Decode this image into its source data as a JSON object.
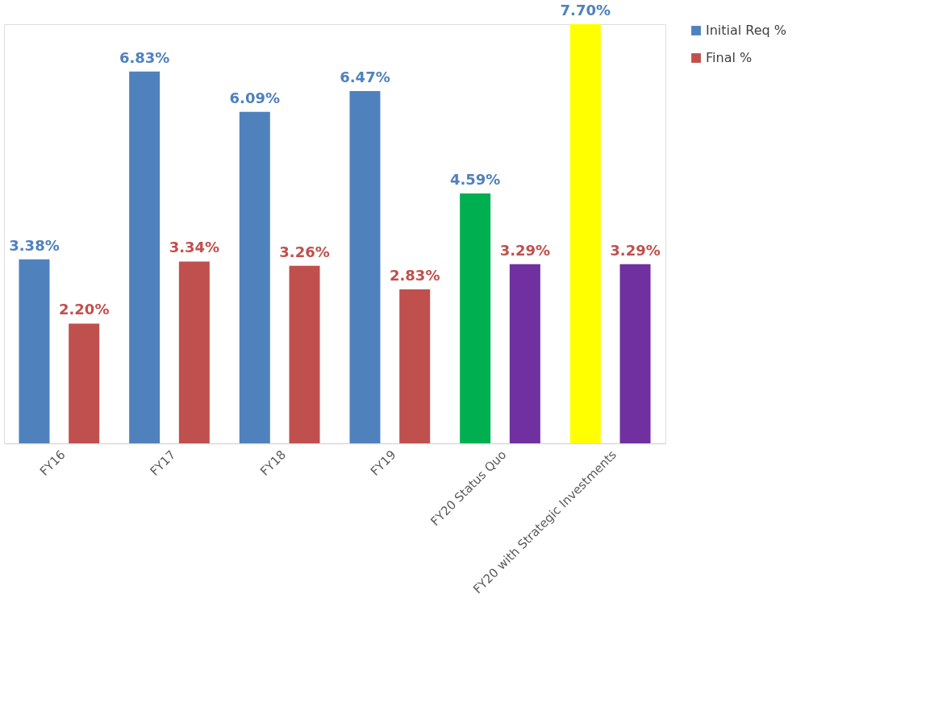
{
  "chart_data": {
    "type": "bar",
    "categories": [
      "FY16",
      "FY17",
      "FY18",
      "FY19",
      "FY20 Status Quo",
      "FY20 with Strategic Investments"
    ],
    "series": [
      {
        "name": "Initial Req %",
        "color": "#4f81bd",
        "colors": [
          "#4f81bd",
          "#4f81bd",
          "#4f81bd",
          "#4f81bd",
          "#00b050",
          "#ffff00"
        ],
        "values": [
          3.38,
          6.83,
          6.09,
          6.47,
          4.59,
          7.7
        ],
        "value_labels": [
          "3.38%",
          "6.83%",
          "6.09%",
          "6.47%",
          "4.59%",
          "7.70%"
        ]
      },
      {
        "name": "Final %",
        "color": "#c0504d",
        "colors": [
          "#c0504d",
          "#c0504d",
          "#c0504d",
          "#c0504d",
          "#7030a0",
          "#7030a0"
        ],
        "values": [
          2.2,
          3.34,
          3.26,
          2.83,
          3.29,
          3.29
        ],
        "value_labels": [
          "2.20%",
          "3.34%",
          "3.26%",
          "2.83%",
          "3.29%",
          "3.29%"
        ]
      }
    ],
    "legend": "right",
    "grid": false
  }
}
